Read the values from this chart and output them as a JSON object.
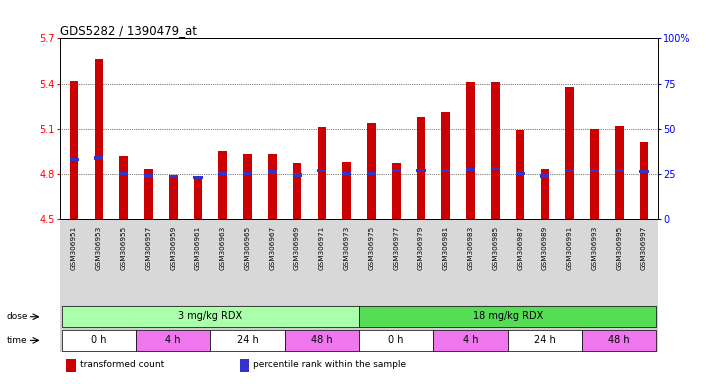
{
  "title": "GDS5282 / 1390479_at",
  "samples": [
    "GSM306951",
    "GSM306953",
    "GSM306955",
    "GSM306957",
    "GSM306959",
    "GSM306961",
    "GSM306963",
    "GSM306965",
    "GSM306967",
    "GSM306969",
    "GSM306971",
    "GSM306973",
    "GSM306975",
    "GSM306977",
    "GSM306979",
    "GSM306981",
    "GSM306983",
    "GSM306985",
    "GSM306987",
    "GSM306989",
    "GSM306991",
    "GSM306993",
    "GSM306995",
    "GSM306997"
  ],
  "bar_values": [
    5.42,
    5.56,
    4.92,
    4.83,
    4.79,
    4.78,
    4.95,
    4.93,
    4.93,
    4.87,
    5.11,
    4.88,
    5.14,
    4.87,
    5.18,
    5.21,
    5.41,
    5.41,
    5.09,
    4.83,
    5.38,
    5.1,
    5.12,
    5.01
  ],
  "percentile_values": [
    4.895,
    4.905,
    4.8,
    4.785,
    4.78,
    4.775,
    4.8,
    4.8,
    4.812,
    4.792,
    4.822,
    4.8,
    4.8,
    4.822,
    4.822,
    4.822,
    4.827,
    4.837,
    4.8,
    4.785,
    4.822,
    4.822,
    4.822,
    4.815
  ],
  "ymin": 4.5,
  "ymax": 5.7,
  "yticks_left": [
    4.5,
    4.8,
    5.1,
    5.4,
    5.7
  ],
  "right_yticks": [
    0,
    25,
    50,
    75,
    100
  ],
  "bar_color": "#cc0000",
  "blue_color": "#3333cc",
  "baseline": 4.5,
  "dose_groups": [
    {
      "label": "3 mg/kg RDX",
      "start": 0,
      "end": 12,
      "color": "#aaffaa"
    },
    {
      "label": "18 mg/kg RDX",
      "start": 12,
      "end": 24,
      "color": "#55dd55"
    }
  ],
  "time_groups": [
    {
      "label": "0 h",
      "start": 0,
      "end": 3,
      "color": "#ffffff"
    },
    {
      "label": "4 h",
      "start": 3,
      "end": 6,
      "color": "#ee77ee"
    },
    {
      "label": "24 h",
      "start": 6,
      "end": 9,
      "color": "#ffffff"
    },
    {
      "label": "48 h",
      "start": 9,
      "end": 12,
      "color": "#ee77ee"
    },
    {
      "label": "0 h",
      "start": 12,
      "end": 15,
      "color": "#ffffff"
    },
    {
      "label": "4 h",
      "start": 15,
      "end": 18,
      "color": "#ee77ee"
    },
    {
      "label": "24 h",
      "start": 18,
      "end": 21,
      "color": "#ffffff"
    },
    {
      "label": "48 h",
      "start": 21,
      "end": 24,
      "color": "#ee77ee"
    }
  ],
  "legend_items": [
    {
      "label": "transformed count",
      "color": "#cc0000"
    },
    {
      "label": "percentile rank within the sample",
      "color": "#3333cc"
    }
  ],
  "bg_xtick": "#d8d8d8",
  "bar_width": 0.35
}
